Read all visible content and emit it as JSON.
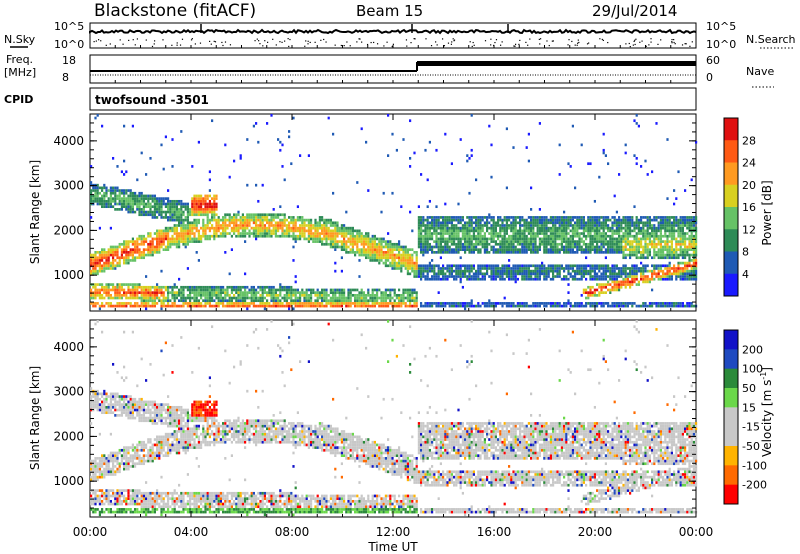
{
  "header": {
    "title": "Blackstone (fitACF)",
    "beam": "Beam 15",
    "date": "29/Jul/2014"
  },
  "sky_panel": {
    "left_label": "N.Sky",
    "right_label": "N.Search",
    "left_ticks": [
      "10^5",
      "10^0"
    ],
    "right_ticks": [
      "10^5",
      "10^0"
    ]
  },
  "freq_panel": {
    "left_label_1": "Freq.",
    "left_label_2": "[MHz]",
    "right_label": "Nave",
    "left_ticks": [
      "18",
      "8"
    ],
    "right_ticks": [
      "60",
      "0"
    ]
  },
  "cpid_panel": {
    "label": "CPID",
    "value": "twofsound -3501"
  },
  "colors": {
    "power_scale": [
      "#1a1aff",
      "#1f5ab4",
      "#2e8b57",
      "#66c266",
      "#d8d020",
      "#ff9a20",
      "#ff5a14",
      "#e01010"
    ],
    "velocity_scale": [
      "#ff0000",
      "#ff6a00",
      "#ffb300",
      "#c8c8c8",
      "#c8c8c8",
      "#6bd84a",
      "#2b8a3a",
      "#1f4ac0",
      "#1212c8"
    ]
  },
  "chart_data": [
    {
      "type": "heatmap",
      "name": "power",
      "xlabel": "",
      "ylabel": "Slant Range [km]",
      "xlim": [
        0,
        24
      ],
      "ylim": [
        200,
        4600
      ],
      "yticks": [
        "1000",
        "2000",
        "3000",
        "4000"
      ],
      "colorbar_label": "Power [dB]",
      "colorbar_ticks": [
        "28",
        "24",
        "20",
        "16",
        "12",
        "8",
        "4"
      ]
    },
    {
      "type": "heatmap",
      "name": "velocity",
      "xlabel": "Time UT",
      "ylabel": "Slant Range [km]",
      "xlim": [
        0,
        24
      ],
      "ylim": [
        200,
        4600
      ],
      "xticks": [
        "00:00",
        "04:00",
        "08:00",
        "12:00",
        "16:00",
        "20:00",
        "00:00"
      ],
      "yticks": [
        "1000",
        "2000",
        "3000",
        "4000"
      ],
      "colorbar_label": "Velocity [m s",
      "colorbar_label_sup": "-1",
      "colorbar_label_end": "]",
      "colorbar_ticks": [
        "200",
        "100",
        "50",
        "15",
        "-15",
        "-50",
        "-100",
        "-200"
      ]
    }
  ]
}
